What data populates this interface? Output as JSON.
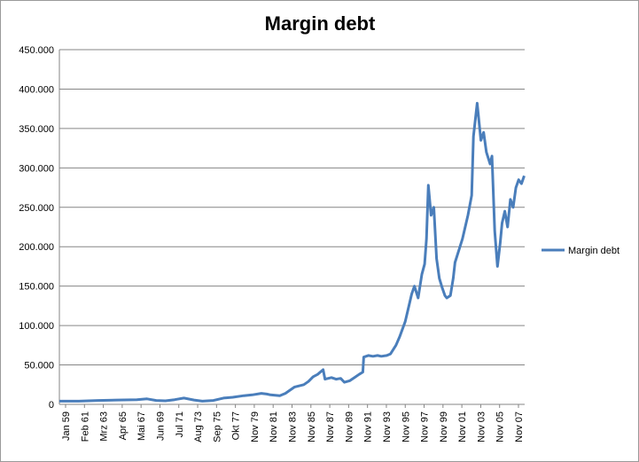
{
  "chart_data": {
    "type": "line",
    "title": "Margin debt",
    "xlabel": "",
    "ylabel": "",
    "ylim": [
      0,
      450000
    ],
    "yticks": [
      "0",
      "50.000",
      "100.000",
      "150.000",
      "200.000",
      "250.000",
      "300.000",
      "350.000",
      "400.000",
      "450.000"
    ],
    "xticks": [
      "Jan 59",
      "Feb 61",
      "Mrz 63",
      "Apr 65",
      "Mai 67",
      "Jun 69",
      "Jul 71",
      "Aug 73",
      "Sep 75",
      "Okt 77",
      "Nov 79",
      "Nov 81",
      "Nov 83",
      "Nov 85",
      "Nov 87",
      "Nov 89",
      "Nov 91",
      "Nov 93",
      "Nov 95",
      "Nov 97",
      "Nov 99",
      "Nov 01",
      "Nov 03",
      "Nov 05",
      "Nov 07"
    ],
    "grid": true,
    "legend_position": "right",
    "series": [
      {
        "name": "Margin debt",
        "color": "#4a7ebb",
        "x": [
          1959.0,
          1961.1,
          1963.2,
          1965.3,
          1967.4,
          1968.5,
          1969.5,
          1970.5,
          1971.5,
          1972.5,
          1973.6,
          1974.5,
          1975.7,
          1976.8,
          1977.8,
          1979.0,
          1979.9,
          1980.9,
          1981.5,
          1981.9,
          1982.9,
          1983.5,
          1984.5,
          1985.5,
          1986.0,
          1986.5,
          1987.0,
          1987.6,
          1987.8,
          1988.5,
          1989.0,
          1989.5,
          1989.9,
          1990.5,
          1991.0,
          1991.5,
          1991.9,
          1992.0,
          1992.5,
          1993.0,
          1993.5,
          1993.9,
          1994.5,
          1994.9,
          1995.5,
          1995.9,
          1996.5,
          1996.9,
          1997.2,
          1997.5,
          1997.9,
          1998.3,
          1998.6,
          1998.8,
          1999.0,
          1999.3,
          1999.6,
          1999.9,
          2000.2,
          2000.5,
          2000.8,
          2001.0,
          2001.4,
          2001.7,
          2001.9,
          2002.3,
          2002.7,
          2003.0,
          2003.3,
          2003.7,
          2003.9,
          2004.3,
          2004.7,
          2005.0,
          2005.3,
          2005.7,
          2005.9,
          2006.2,
          2006.5,
          2006.8,
          2007.0,
          2007.3,
          2007.6,
          2007.9,
          2008.2,
          2008.5,
          2008.8,
          2009.1,
          2009.4
        ],
        "values": [
          4000,
          4000,
          5000,
          5500,
          6000,
          7000,
          5000,
          4500,
          6000,
          8000,
          5500,
          4000,
          5000,
          8000,
          9000,
          11000,
          12000,
          14000,
          13000,
          12000,
          11000,
          14000,
          22000,
          25000,
          29000,
          35000,
          38000,
          44000,
          32000,
          34000,
          32000,
          33000,
          28000,
          30000,
          34000,
          38000,
          41000,
          60000,
          62000,
          61000,
          62000,
          61000,
          62000,
          64000,
          75000,
          86000,
          105000,
          125000,
          140000,
          150000,
          135000,
          165000,
          178000,
          210000,
          278000,
          240000,
          250000,
          185000,
          160000,
          148000,
          138000,
          135000,
          138000,
          160000,
          180000,
          195000,
          210000,
          225000,
          240000,
          265000,
          340000,
          382000,
          335000,
          345000,
          320000,
          305000,
          315000,
          220000,
          175000,
          205000,
          230000,
          245000,
          225000,
          260000,
          250000,
          275000,
          285000,
          280000,
          290000
        ]
      }
    ]
  }
}
